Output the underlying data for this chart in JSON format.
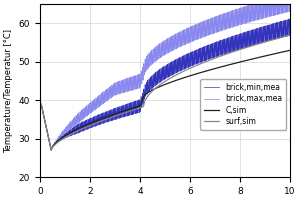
{
  "title": "",
  "xlabel": "",
  "ylabel": "Temperature/Temperatur [°C]",
  "xlim": [
    0,
    10
  ],
  "ylim": [
    20,
    65
  ],
  "yticks": [
    20,
    30,
    40,
    50,
    60
  ],
  "xticks": [
    0,
    2,
    4,
    6,
    8,
    10
  ],
  "legend": [
    "brick,min,mea",
    "brick,max,mea",
    "C,sim",
    "surf,sim"
  ],
  "colors": {
    "brick_min": "#3333bb",
    "brick_max": "#8888ee",
    "c_sim": "#222222",
    "surf_sim": "#888888"
  },
  "osc_freq": 60,
  "grid": true,
  "figsize": [
    3.0,
    2.0
  ],
  "dpi": 100
}
